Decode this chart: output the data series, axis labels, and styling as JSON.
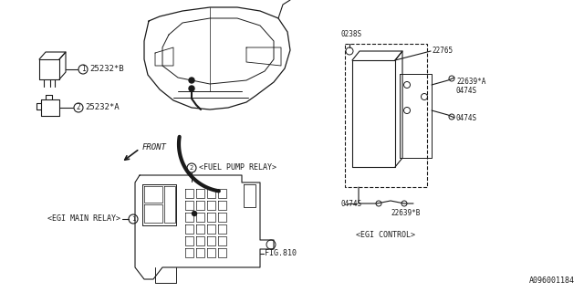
{
  "bg_color": "#ffffff",
  "line_color": "#1a1a1a",
  "part_number_bottom_right": "A096001184",
  "labels": {
    "relay1": "25232*B",
    "relay2": "25232*A",
    "front": "FRONT",
    "fuel_pump": "<FUEL PUMP RELAY>",
    "egi_main": "<EGI MAIN RELAY>",
    "fig": "FIG.810",
    "part_0238S": "0238S",
    "part_22765": "22765",
    "part_22639A": "22639*A",
    "part_0474S_1": "0474S",
    "part_0474S_2": "0474S",
    "part_0474S_3": "0474S",
    "part_22639B": "22639*B",
    "egi_control": "<EGI CONTROL>"
  }
}
